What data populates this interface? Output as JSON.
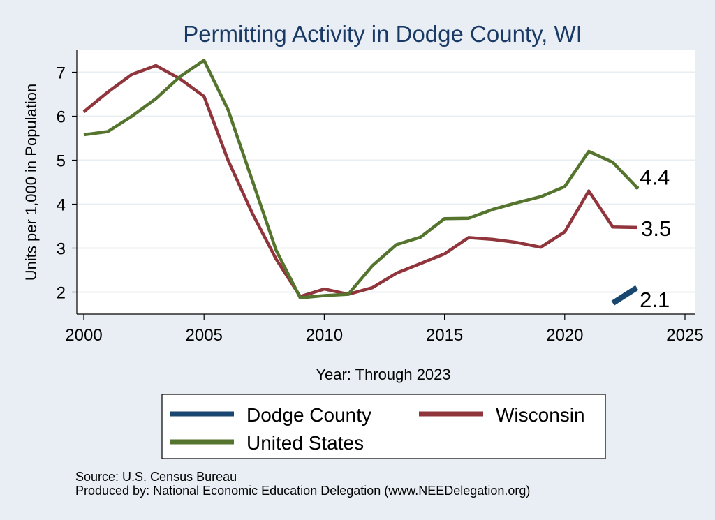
{
  "chart_data": {
    "type": "line",
    "title": "Permitting Activity in Dodge County, WI",
    "xlabel": "Year: Through 2023",
    "ylabel": "Units per 1,000 in Population",
    "xlim": [
      2000,
      2025
    ],
    "ylim": [
      1.5,
      7.5
    ],
    "xticks": [
      2000,
      2005,
      2010,
      2015,
      2020,
      2025
    ],
    "yticks": [
      2,
      3,
      4,
      5,
      6,
      7
    ],
    "grid": true,
    "legend_position": "bottom",
    "series": [
      {
        "name": "Dodge County",
        "color": "#1a476f",
        "x": [
          2022,
          2023
        ],
        "y": [
          1.75,
          2.1
        ],
        "end_label": "2.1"
      },
      {
        "name": "Wisconsin",
        "color": "#90353b",
        "x": [
          2000,
          2001,
          2002,
          2003,
          2004,
          2005,
          2006,
          2007,
          2008,
          2009,
          2010,
          2011,
          2012,
          2013,
          2014,
          2015,
          2016,
          2017,
          2018,
          2019,
          2020,
          2021,
          2022,
          2023
        ],
        "y": [
          6.1,
          6.55,
          6.95,
          7.15,
          6.85,
          6.45,
          5.0,
          3.8,
          2.75,
          1.9,
          2.07,
          1.95,
          2.1,
          2.43,
          2.65,
          2.87,
          3.24,
          3.2,
          3.13,
          3.02,
          3.37,
          4.3,
          3.48,
          3.47
        ],
        "end_label": "3.5"
      },
      {
        "name": "United States",
        "color": "#55752f",
        "x": [
          2000,
          2001,
          2002,
          2003,
          2004,
          2005,
          2006,
          2007,
          2008,
          2009,
          2010,
          2011,
          2012,
          2013,
          2014,
          2015,
          2016,
          2017,
          2018,
          2019,
          2020,
          2021,
          2022,
          2023
        ],
        "y": [
          5.58,
          5.65,
          6.0,
          6.4,
          6.9,
          7.27,
          6.15,
          4.55,
          2.95,
          1.87,
          1.92,
          1.95,
          2.6,
          3.08,
          3.25,
          3.67,
          3.68,
          3.88,
          4.03,
          4.17,
          4.4,
          5.2,
          4.95,
          4.38
        ],
        "end_label": "4.4"
      }
    ]
  },
  "legend": {
    "items": [
      {
        "label": "Dodge County",
        "color": "#1a476f"
      },
      {
        "label": "Wisconsin",
        "color": "#90353b"
      },
      {
        "label": "United States",
        "color": "#55752f"
      }
    ]
  },
  "notes": {
    "source": "Source: U.S. Census Bureau",
    "produced_by": "Produced by: National Economic Education Delegation (www.NEEDelegation.org)"
  }
}
